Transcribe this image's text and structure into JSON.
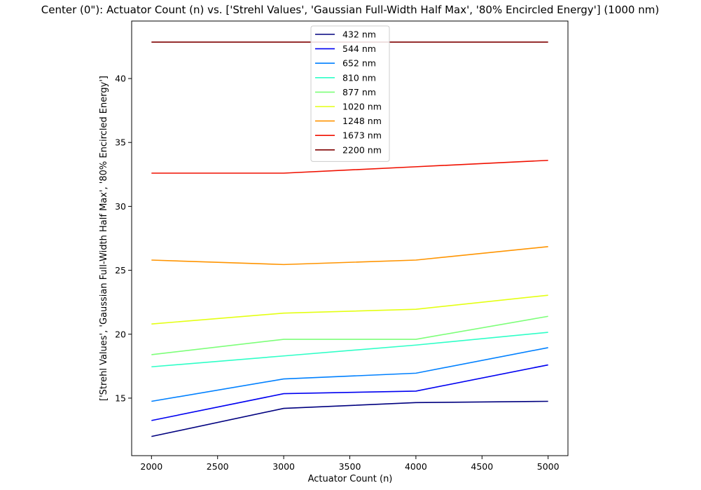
{
  "chart_data": {
    "type": "line",
    "title": "Center (0\"): Actuator Count (n) vs. ['Strehl Values', 'Gaussian Full-Width Half Max', '80% Encircled Energy'] (1000 nm)",
    "xlabel": "Actuator Count (n)",
    "ylabel": "['Strehl Values', 'Gaussian Full-Width Half Max', '80% Encircled Energy']",
    "x": [
      2000,
      3000,
      4000,
      5000
    ],
    "xlim": [
      1850,
      5150
    ],
    "ylim": [
      10.5,
      44.5
    ],
    "xticks": [
      2000,
      2500,
      3000,
      3500,
      4000,
      4500,
      5000
    ],
    "yticks": [
      15,
      20,
      25,
      30,
      35,
      40
    ],
    "grid": false,
    "legend_position": "top-center",
    "series": [
      {
        "name": "432 nm",
        "color": "#00007f",
        "values": [
          12.0,
          14.2,
          14.65,
          14.75
        ]
      },
      {
        "name": "544 nm",
        "color": "#0000f1",
        "values": [
          13.25,
          15.35,
          15.55,
          17.6
        ]
      },
      {
        "name": "652 nm",
        "color": "#0080ff",
        "values": [
          14.75,
          16.5,
          16.95,
          18.95
        ]
      },
      {
        "name": "810 nm",
        "color": "#2fffc7",
        "values": [
          17.45,
          18.3,
          19.15,
          20.15
        ]
      },
      {
        "name": "877 nm",
        "color": "#7dff79",
        "values": [
          18.4,
          19.6,
          19.6,
          21.4
        ]
      },
      {
        "name": "1020 nm",
        "color": "#e4ff13",
        "values": [
          20.8,
          21.65,
          21.95,
          23.05
        ]
      },
      {
        "name": "1248 nm",
        "color": "#ff9400",
        "values": [
          25.8,
          25.45,
          25.8,
          26.85
        ]
      },
      {
        "name": "1673 nm",
        "color": "#f01000",
        "values": [
          32.6,
          32.6,
          33.1,
          33.6
        ]
      },
      {
        "name": "2200 nm",
        "color": "#7f0000",
        "values": [
          42.85,
          42.85,
          42.85,
          42.85
        ]
      }
    ]
  }
}
